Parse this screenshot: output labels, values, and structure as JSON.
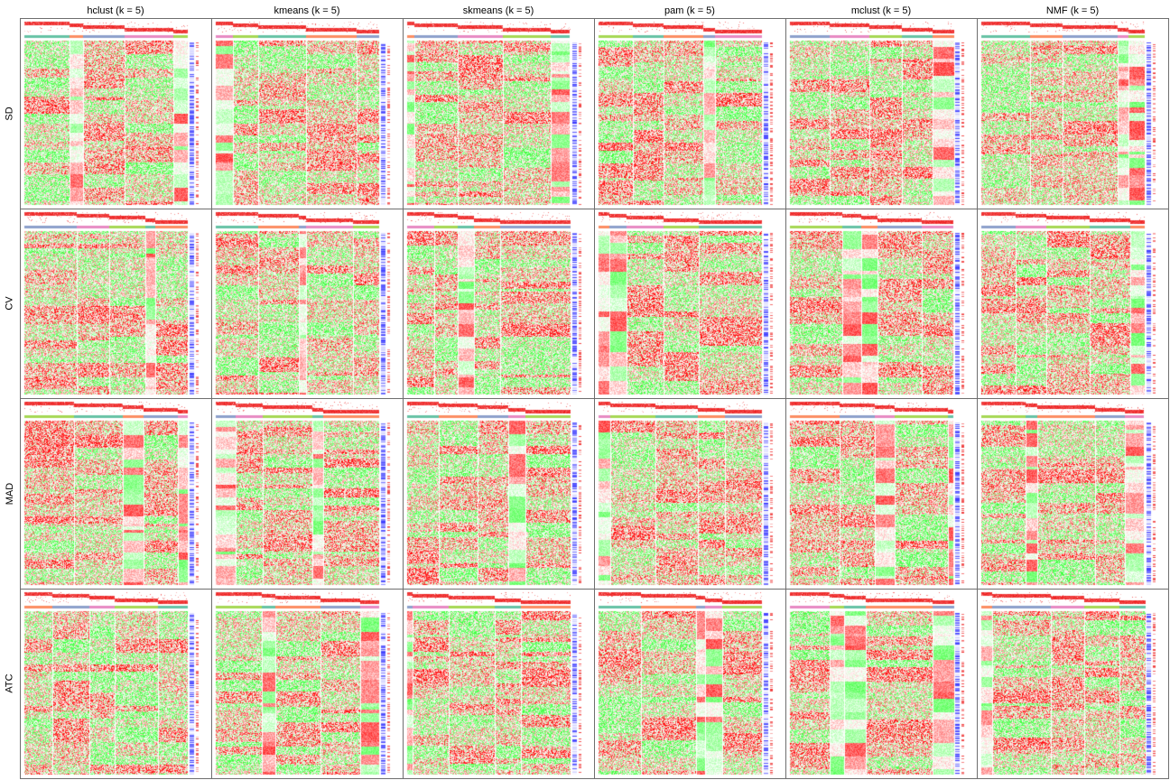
{
  "columns": [
    "hclust (k = 5)",
    "kmeans (k = 5)",
    "skmeans (k = 5)",
    "pam (k = 5)",
    "mclust (k = 5)",
    "NMF (k = 5)"
  ],
  "rows": [
    "SD",
    "CV",
    "MAD",
    "ATC"
  ],
  "colors": {
    "low": "#00ff00",
    "mid": "#ffffff",
    "high": "#ff0000",
    "annotation_red": "#ee1c1c",
    "class_colors": [
      "#66c2a5",
      "#fc8d62",
      "#8da0cb",
      "#e78ac3",
      "#a6d854"
    ],
    "signature_blue": "#3b3bff",
    "panel_border": "#6e6e6e"
  }
}
